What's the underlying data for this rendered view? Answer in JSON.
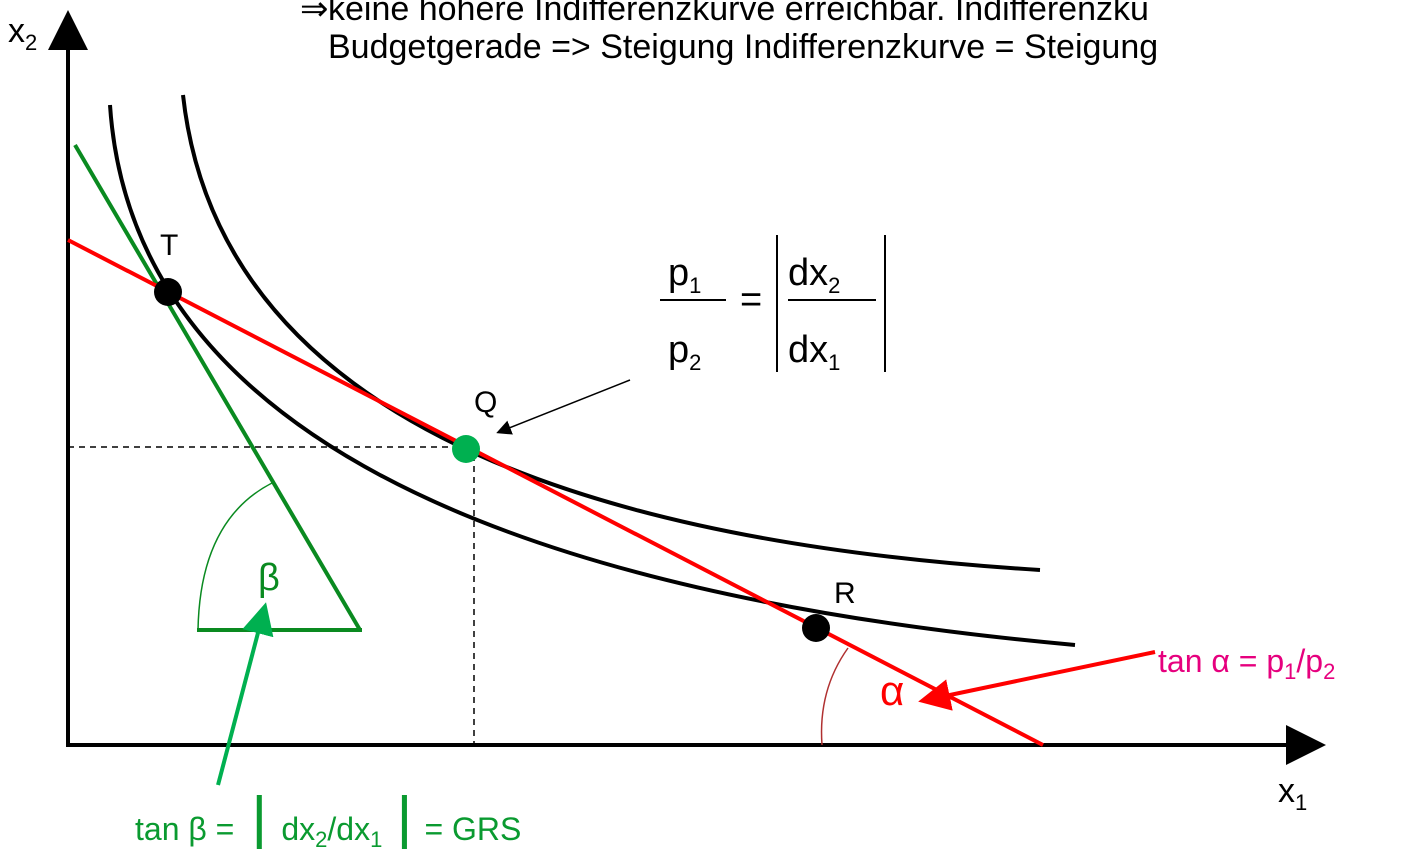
{
  "header": {
    "arrow": "⇒",
    "line1": "keine höhere Indifferenzkurve erreichbar. Indifferenzku",
    "line2": "Budgetgerade => Steigung Indifferenzkurve = Steigung"
  },
  "axes": {
    "y": {
      "base": "x",
      "sub": "2"
    },
    "x": {
      "base": "x",
      "sub": "1"
    }
  },
  "points": [
    {
      "label": "T"
    },
    {
      "label": "Q"
    },
    {
      "label": "R"
    }
  ],
  "angles": {
    "beta": "β",
    "alpha": "α"
  },
  "formula": {
    "num": {
      "base": "p",
      "sub": "1"
    },
    "den": {
      "base": "p",
      "sub": "2"
    },
    "eq": "=",
    "rnum": {
      "base": "dx",
      "sub": "2"
    },
    "rden": {
      "base": "dx",
      "sub": "1"
    }
  },
  "tan_alpha": {
    "a": "tan α = p",
    "b": "1",
    "c": "/p",
    "d": "2"
  },
  "tan_beta": {
    "a": "tan β = ",
    "bar1": "|",
    "b": "dx",
    "c": "2",
    "d": "/dx",
    "e": "1",
    "bar2": "|",
    "f": "= GRS"
  }
}
